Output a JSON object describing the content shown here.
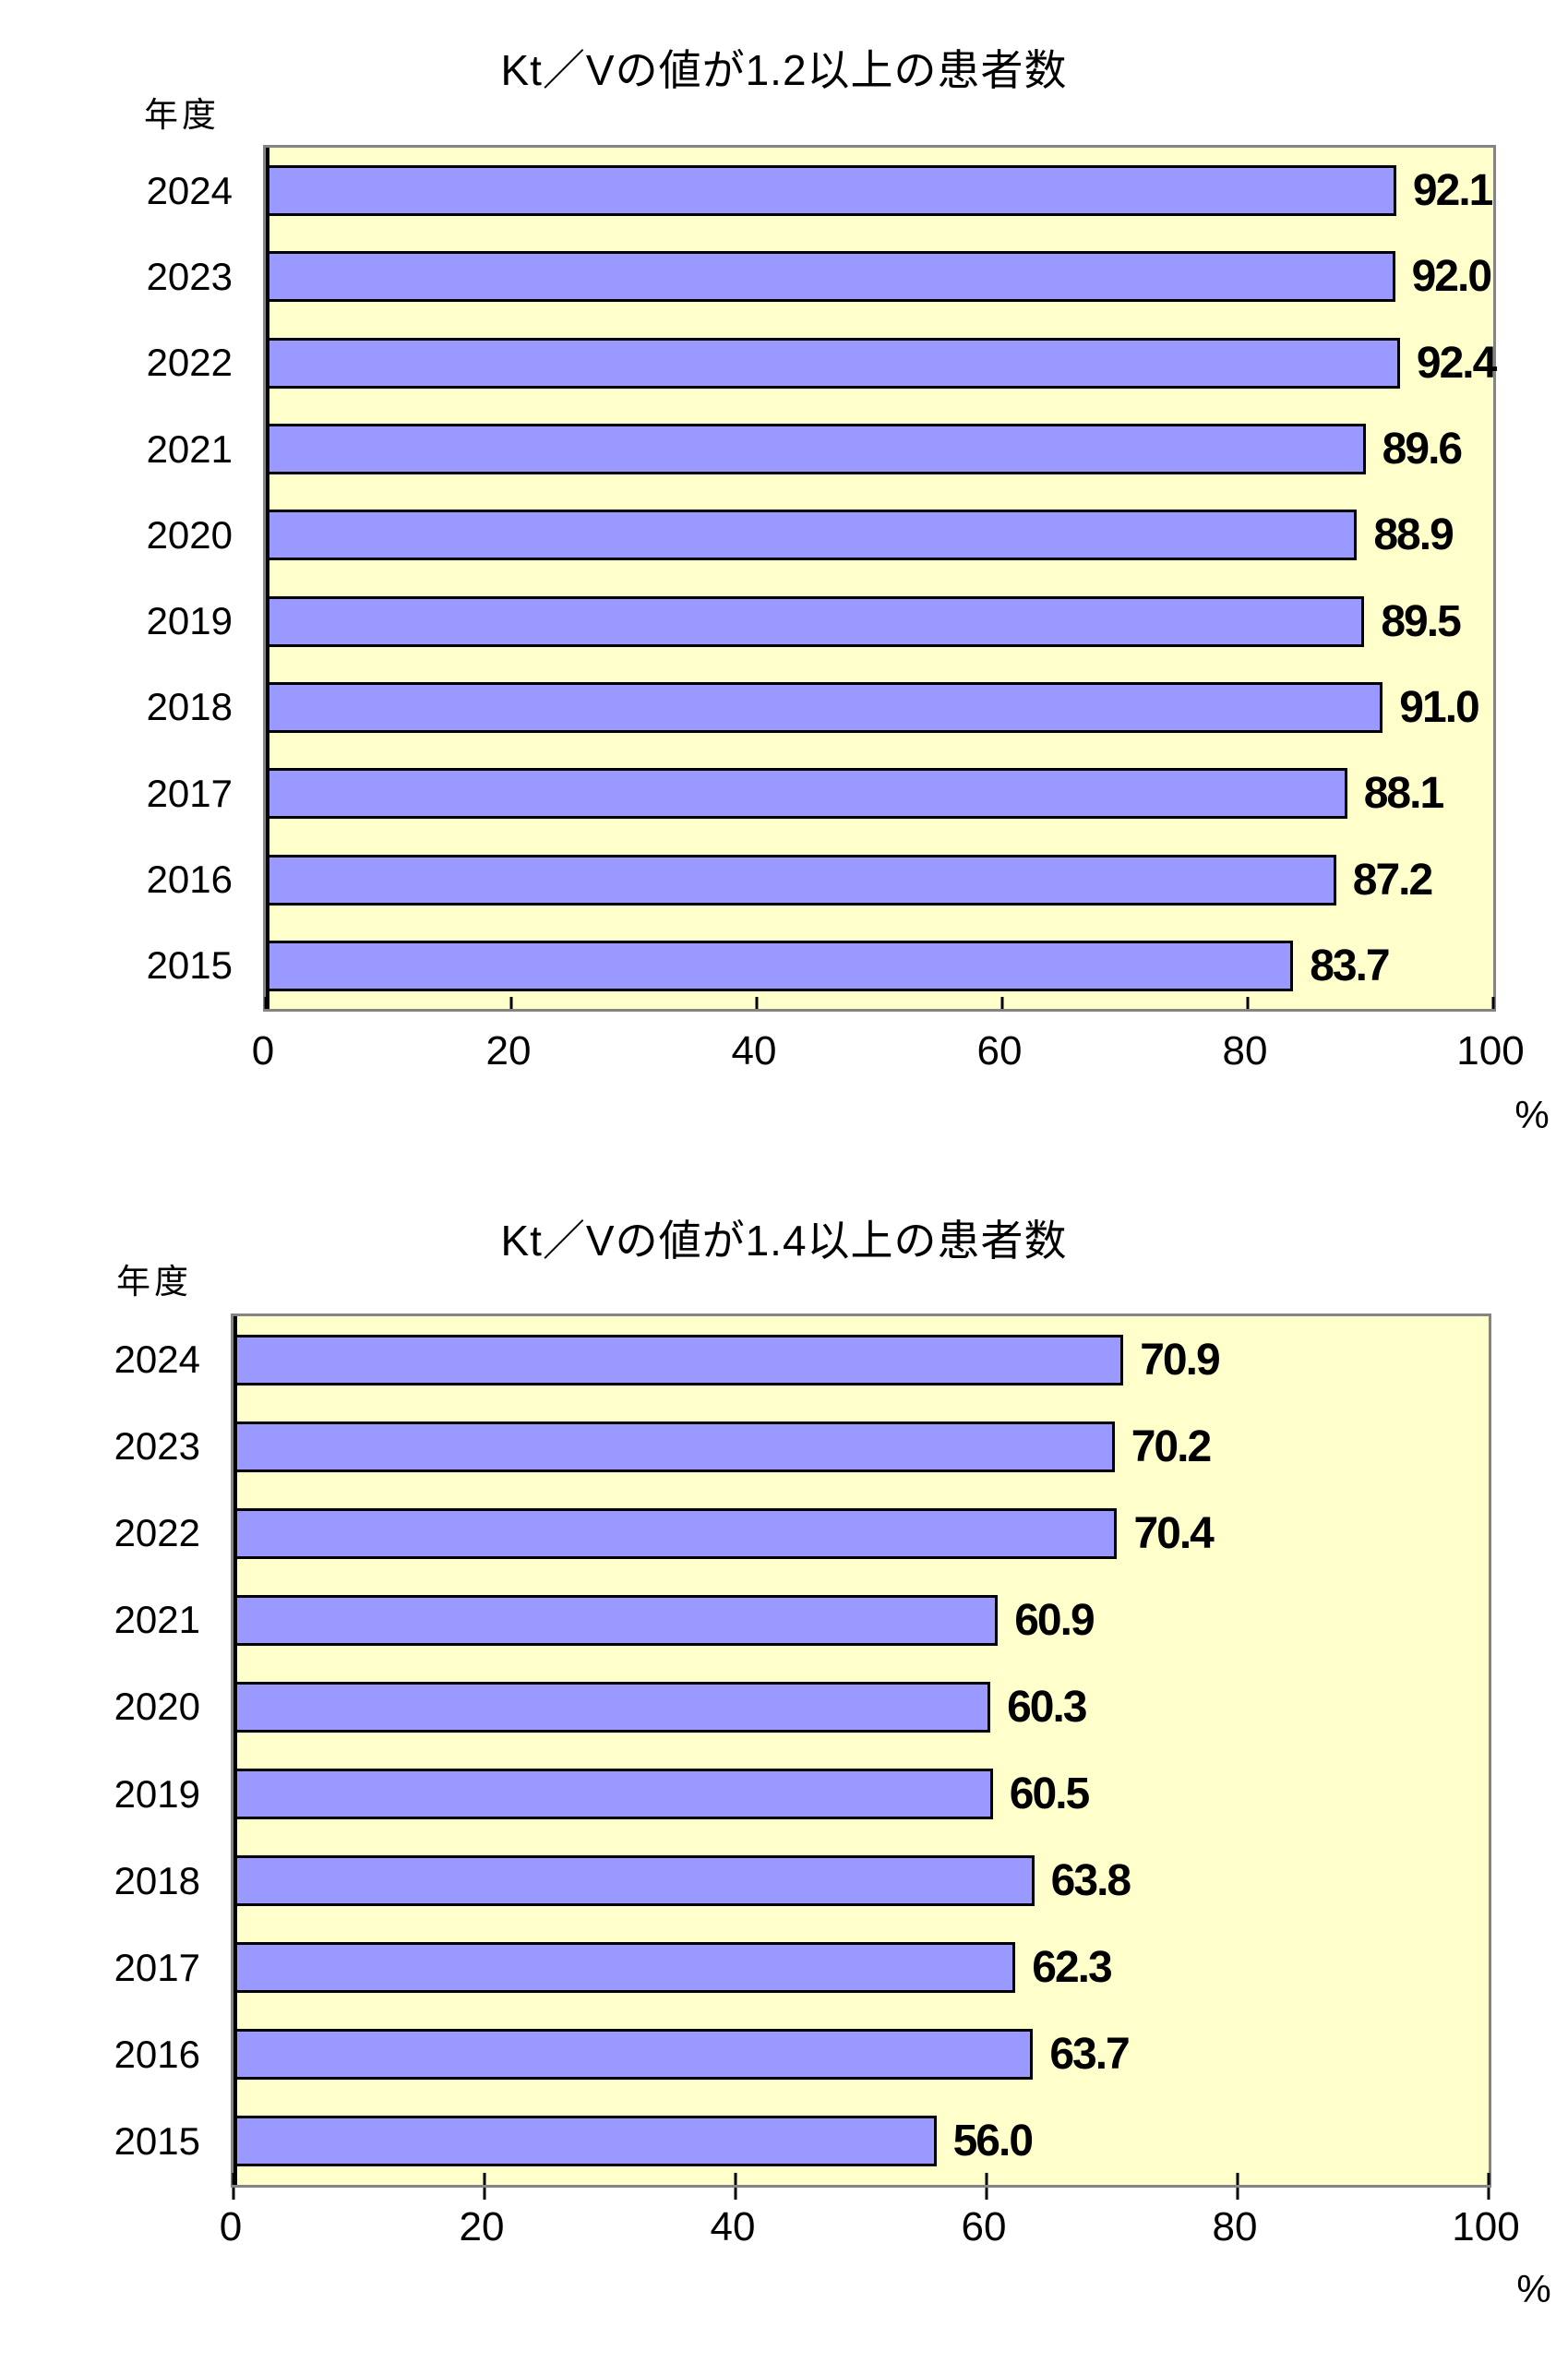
{
  "page": {
    "background": "#ffffff"
  },
  "chart_data": [
    {
      "type": "bar",
      "orientation": "horizontal",
      "title": "Kt／Vの値が1.2以上の患者数",
      "y_axis_title": "年度",
      "unit_label": "%",
      "categories": [
        "2024",
        "2023",
        "2022",
        "2021",
        "2020",
        "2019",
        "2018",
        "2017",
        "2016",
        "2015"
      ],
      "values": [
        92.1,
        92.0,
        92.4,
        89.6,
        88.9,
        89.5,
        91.0,
        88.1,
        87.2,
        83.7
      ],
      "data_labels": [
        "92.1",
        "92.0",
        "92.4",
        "89.6",
        "88.9",
        "89.5",
        "91.0",
        "88.1",
        "87.2",
        "83.7"
      ],
      "xlim": [
        0,
        100
      ],
      "x_tick_labels": [
        "0",
        "20",
        "40",
        "60",
        "80",
        "100"
      ],
      "grid": false,
      "legend": false,
      "tick_style": "inside",
      "bar_fill": "#9999FF",
      "bar_border": "#000000",
      "plot_background": "#FFFFCC",
      "plot_border": "#848484",
      "axis_color": "#000000"
    },
    {
      "type": "bar",
      "orientation": "horizontal",
      "title": "Kt／Vの値が1.4以上の患者数",
      "y_axis_title": "年度",
      "unit_label": "%",
      "categories": [
        "2024",
        "2023",
        "2022",
        "2021",
        "2020",
        "2019",
        "2018",
        "2017",
        "2016",
        "2015"
      ],
      "values": [
        70.9,
        70.2,
        70.4,
        60.9,
        60.3,
        60.5,
        63.8,
        62.3,
        63.7,
        56.0
      ],
      "data_labels": [
        "70.9",
        "70.2",
        "70.4",
        "60.9",
        "60.3",
        "60.5",
        "63.8",
        "62.3",
        "63.7",
        "56.0"
      ],
      "xlim": [
        0,
        100
      ],
      "x_tick_labels": [
        "0",
        "20",
        "40",
        "60",
        "80",
        "100"
      ],
      "grid": false,
      "legend": false,
      "tick_style": "cross",
      "bar_fill": "#9999FF",
      "bar_border": "#000000",
      "plot_background": "#FFFFCC",
      "plot_border": "#848484",
      "axis_color": "#000000"
    }
  ]
}
